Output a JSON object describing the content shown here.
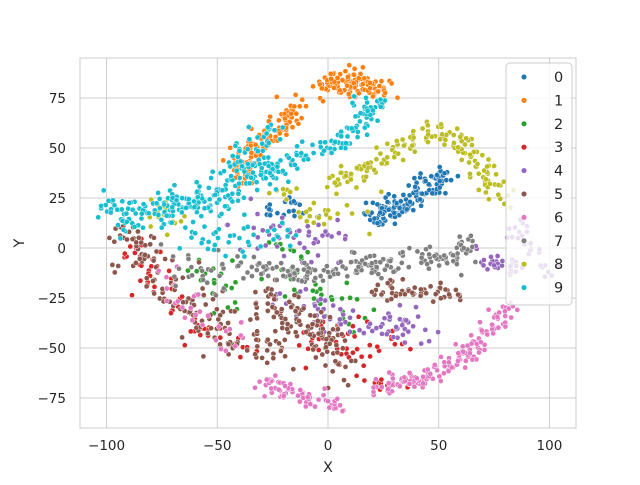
{
  "chart_data": {
    "type": "scatter",
    "xlabel": "X",
    "ylabel": "Y",
    "xlim": [
      -112,
      112
    ],
    "ylim": [
      -90,
      95
    ],
    "x_ticks": [
      "−100",
      "−50",
      "0",
      "50",
      "100"
    ],
    "x_tick_values": [
      -100,
      -50,
      0,
      50,
      100
    ],
    "y_ticks": [
      "75",
      "50",
      "25",
      "0",
      "−25",
      "−50",
      "−75"
    ],
    "y_tick_values": [
      75,
      50,
      25,
      0,
      -25,
      -50,
      -75
    ],
    "grid": true,
    "legend_position": "top-right",
    "series": [
      {
        "name": "0",
        "color": "#1f77b4",
        "clusters": [
          {
            "path": [
              [
                20,
                15
              ],
              [
                35,
                22
              ],
              [
                45,
                30
              ],
              [
                52,
                36
              ]
            ],
            "spread": 3.5,
            "n": 140
          },
          {
            "path": [
              [
                -30,
                18
              ],
              [
                -10,
                20
              ]
            ],
            "spread": 3,
            "n": 20
          }
        ]
      },
      {
        "name": "1",
        "color": "#ff7f0e",
        "clusters": [
          {
            "path": [
              [
                -2,
                78
              ],
              [
                8,
                84
              ],
              [
                20,
                80
              ],
              [
                26,
                79
              ]
            ],
            "spread": 3,
            "n": 110
          },
          {
            "path": [
              [
                -12,
                74
              ],
              [
                -22,
                62
              ],
              [
                -34,
                48
              ],
              [
                -40,
                40
              ]
            ],
            "spread": 3.5,
            "n": 110
          },
          {
            "path": [
              [
                -42,
                42
              ],
              [
                -40,
                32
              ]
            ],
            "spread": 2.5,
            "n": 20
          }
        ]
      },
      {
        "name": "2",
        "color": "#2ca02c",
        "clusters": [
          {
            "path": [
              [
                -20,
                -2
              ],
              [
                -10,
                -18
              ],
              [
                0,
                -30
              ],
              [
                8,
                -40
              ]
            ],
            "spread": 7,
            "n": 45
          },
          {
            "path": [
              [
                -60,
                -10
              ],
              [
                -40,
                -25
              ]
            ],
            "spread": 6,
            "n": 20
          }
        ]
      },
      {
        "name": "3",
        "color": "#d62728",
        "clusters": [
          {
            "path": [
              [
                -95,
                5
              ],
              [
                -80,
                -12
              ],
              [
                -65,
                -30
              ],
              [
                -50,
                -45
              ],
              [
                -35,
                -52
              ]
            ],
            "spread": 5,
            "n": 60
          },
          {
            "path": [
              [
                -10,
                -45
              ],
              [
                10,
                -50
              ],
              [
                30,
                -48
              ]
            ],
            "spread": 6,
            "n": 45
          },
          {
            "path": [
              [
                20,
                -68
              ],
              [
                40,
                -66
              ]
            ],
            "spread": 2,
            "n": 20
          }
        ]
      },
      {
        "name": "4",
        "color": "#9467bd",
        "clusters": [
          {
            "path": [
              [
                -40,
                10
              ],
              [
                -15,
                5
              ],
              [
                10,
                3
              ]
            ],
            "spread": 6,
            "n": 45
          },
          {
            "path": [
              [
                -25,
                -25
              ],
              [
                0,
                -32
              ],
              [
                25,
                -38
              ],
              [
                45,
                -42
              ]
            ],
            "spread": 5,
            "n": 70
          },
          {
            "path": [
              [
                70,
                -5
              ],
              [
                78,
                -10
              ],
              [
                86,
                -12
              ]
            ],
            "spread": 3,
            "n": 30
          },
          {
            "path": [
              [
                80,
                5
              ],
              [
                88,
                10
              ],
              [
                100,
                -12
              ]
            ],
            "spread": 3,
            "n": 25
          }
        ]
      },
      {
        "name": "5",
        "color": "#8c564b",
        "clusters": [
          {
            "path": [
              [
                -95,
                10
              ],
              [
                -80,
                -10
              ],
              [
                -65,
                -25
              ],
              [
                -50,
                -40
              ],
              [
                -30,
                -50
              ],
              [
                -20,
                -55
              ]
            ],
            "spread": 5,
            "n": 140
          },
          {
            "path": [
              [
                -30,
                -25
              ],
              [
                -15,
                -35
              ],
              [
                0,
                -45
              ],
              [
                5,
                -62
              ]
            ],
            "spread": 5,
            "n": 110
          },
          {
            "path": [
              [
                20,
                -22
              ],
              [
                35,
                -20
              ],
              [
                50,
                -22
              ],
              [
                60,
                -24
              ]
            ],
            "spread": 2.5,
            "n": 55
          }
        ]
      },
      {
        "name": "6",
        "color": "#e377c2",
        "clusters": [
          {
            "path": [
              [
                20,
                -70
              ],
              [
                40,
                -66
              ],
              [
                60,
                -56
              ],
              [
                75,
                -40
              ],
              [
                82,
                -30
              ]
            ],
            "spread": 2.5,
            "n": 140
          },
          {
            "path": [
              [
                -28,
                -67
              ],
              [
                -15,
                -74
              ],
              [
                0,
                -78
              ],
              [
                8,
                -80
              ]
            ],
            "spread": 2.5,
            "n": 70
          },
          {
            "path": [
              [
                -75,
                -15
              ],
              [
                -55,
                -35
              ],
              [
                -40,
                -45
              ]
            ],
            "spread": 5,
            "n": 30
          }
        ]
      },
      {
        "name": "7",
        "color": "#7f7f7f",
        "clusters": [
          {
            "path": [
              [
                -40,
                -10
              ],
              [
                -20,
                -12
              ],
              [
                0,
                -12
              ],
              [
                20,
                -8
              ],
              [
                40,
                -5
              ],
              [
                60,
                -5
              ],
              [
                65,
                5
              ]
            ],
            "spread": 3,
            "n": 170
          },
          {
            "path": [
              [
                -70,
                -5
              ],
              [
                -50,
                -15
              ]
            ],
            "spread": 6,
            "n": 25
          }
        ]
      },
      {
        "name": "8",
        "color": "#bcbd22",
        "clusters": [
          {
            "path": [
              [
                2,
                32
              ],
              [
                18,
                38
              ],
              [
                32,
                50
              ],
              [
                45,
                58
              ],
              [
                55,
                58
              ],
              [
                62,
                50
              ],
              [
                72,
                35
              ],
              [
                78,
                25
              ]
            ],
            "spread": 3,
            "n": 150
          },
          {
            "path": [
              [
                -25,
                25
              ],
              [
                -5,
                15
              ],
              [
                15,
                18
              ]
            ],
            "spread": 5,
            "n": 30
          },
          {
            "path": [
              [
                -80,
                20
              ],
              [
                -65,
                12
              ]
            ],
            "spread": 4,
            "n": 15
          }
        ]
      },
      {
        "name": "9",
        "color": "#17becf",
        "clusters": [
          {
            "path": [
              [
                -100,
                22
              ],
              [
                -90,
                15
              ],
              [
                -80,
                18
              ],
              [
                -65,
                22
              ],
              [
                -50,
                25
              ],
              [
                -40,
                28
              ]
            ],
            "spread": 4,
            "n": 160
          },
          {
            "path": [
              [
                -40,
                36
              ],
              [
                -28,
                38
              ],
              [
                -18,
                42
              ],
              [
                -10,
                48
              ]
            ],
            "spread": 4,
            "n": 80
          },
          {
            "path": [
              [
                -45,
                40
              ],
              [
                -35,
                50
              ],
              [
                -25,
                60
              ]
            ],
            "spread": 3,
            "n": 40
          },
          {
            "path": [
              [
                -2,
                50
              ],
              [
                6,
                55
              ],
              [
                14,
                62
              ],
              [
                20,
                72
              ]
            ],
            "spread": 3,
            "n": 70
          },
          {
            "path": [
              [
                -70,
                8
              ],
              [
                -40,
                5
              ],
              [
                -20,
                8
              ]
            ],
            "spread": 6,
            "n": 45
          }
        ]
      }
    ]
  }
}
